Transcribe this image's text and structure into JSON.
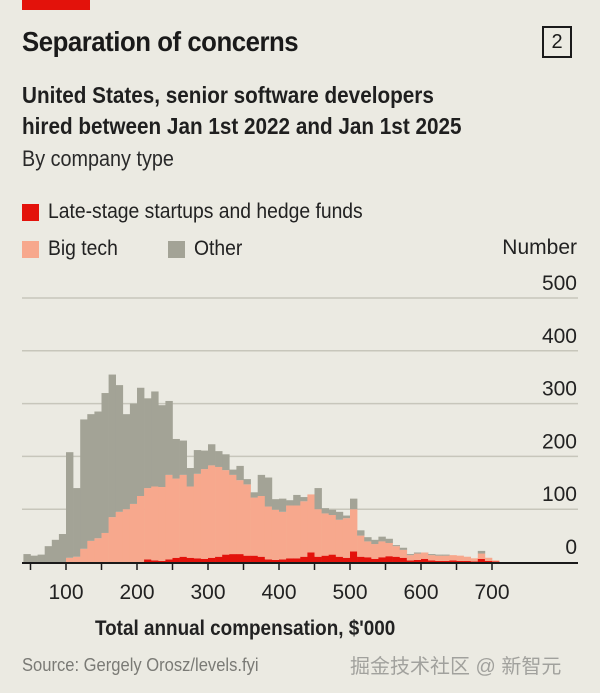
{
  "header": {
    "title": "Separation of concerns",
    "chart_number": "2",
    "subtitle_line1": "United States, senior software developers",
    "subtitle_line2": "hired between Jan 1st 2022 and Jan 1st 2025",
    "subtitle_line3": "By company type"
  },
  "colors": {
    "accent": "#e3120b",
    "late_stage": "#e3120b",
    "big_tech": "#f7a88d",
    "other": "#a3a396",
    "background": "#ebeae2",
    "grid": "#c7c6bb"
  },
  "footer": {
    "source": "Source: Gergely Orosz/levels.fyi",
    "watermark": "掘金技术社区 @ 新智元"
  },
  "chart_data": {
    "type": "bar",
    "stacked": true,
    "title": "Separation of concerns",
    "xlabel": "Total annual compensation, $'000",
    "ylabel": "Number",
    "xlim": [
      40,
      740
    ],
    "ylim": [
      0,
      500
    ],
    "bin_width": 10,
    "grid": true,
    "legend": [
      {
        "name": "Late-stage startups and hedge funds",
        "color": "#e3120b"
      },
      {
        "name": "Big tech",
        "color": "#f7a88d"
      },
      {
        "name": "Other",
        "color": "#a3a396"
      }
    ],
    "legend_placement": "top-left",
    "yticks": [
      0,
      100,
      200,
      300,
      400,
      500
    ],
    "xticks": [
      50,
      100,
      150,
      200,
      250,
      300,
      350,
      400,
      450,
      500,
      550,
      600,
      650,
      700
    ],
    "xtick_labels": [
      "100",
      "200",
      "300",
      "400",
      "500",
      "600",
      "700"
    ],
    "xtick_label_values": [
      100,
      200,
      300,
      400,
      500,
      600,
      700
    ],
    "bin_starts": [
      40,
      50,
      60,
      70,
      80,
      90,
      100,
      110,
      120,
      130,
      140,
      150,
      160,
      170,
      180,
      190,
      200,
      210,
      220,
      230,
      240,
      250,
      260,
      270,
      280,
      290,
      300,
      310,
      320,
      330,
      340,
      350,
      360,
      370,
      380,
      390,
      400,
      410,
      420,
      430,
      440,
      450,
      460,
      470,
      480,
      490,
      500,
      510,
      520,
      530,
      540,
      550,
      560,
      570,
      580,
      590,
      600,
      610,
      620,
      630,
      640,
      650,
      660,
      670,
      680,
      690,
      700,
      710
    ],
    "series": [
      {
        "name": "Late-stage startups and hedge funds",
        "values": [
          0,
          0,
          0,
          0,
          0,
          0,
          0,
          0,
          0,
          0,
          0,
          0,
          0,
          0,
          0,
          0,
          0,
          5,
          3,
          2,
          5,
          8,
          10,
          8,
          7,
          6,
          8,
          10,
          14,
          15,
          15,
          12,
          12,
          10,
          5,
          4,
          5,
          7,
          7,
          10,
          18,
          10,
          12,
          14,
          10,
          8,
          20,
          10,
          9,
          6,
          9,
          11,
          10,
          8,
          3,
          4,
          6,
          3,
          2,
          2,
          3,
          2,
          2,
          1,
          6,
          2,
          1,
          0
        ]
      },
      {
        "name": "Big tech",
        "values": [
          0,
          0,
          0,
          0,
          0,
          0,
          8,
          10,
          25,
          40,
          45,
          55,
          85,
          95,
          100,
          110,
          125,
          135,
          140,
          140,
          160,
          150,
          155,
          135,
          160,
          170,
          175,
          170,
          160,
          150,
          140,
          135,
          110,
          115,
          100,
          95,
          90,
          100,
          100,
          105,
          110,
          90,
          80,
          75,
          70,
          75,
          80,
          40,
          30,
          28,
          30,
          25,
          20,
          15,
          10,
          12,
          12,
          10,
          10,
          10,
          10,
          10,
          8,
          6,
          10,
          6,
          2,
          0
        ]
      },
      {
        "name": "Other",
        "values": [
          15,
          12,
          14,
          30,
          42,
          53,
          200,
          130,
          245,
          240,
          240,
          265,
          270,
          240,
          180,
          190,
          205,
          170,
          180,
          155,
          140,
          75,
          65,
          35,
          45,
          35,
          40,
          30,
          30,
          10,
          27,
          10,
          10,
          40,
          55,
          20,
          25,
          10,
          20,
          8,
          0,
          40,
          10,
          10,
          15,
          5,
          20,
          10,
          8,
          8,
          9,
          8,
          2,
          4,
          2,
          2,
          0,
          2,
          2,
          2,
          0,
          0,
          0,
          0,
          5,
          0,
          0,
          0
        ]
      }
    ]
  }
}
